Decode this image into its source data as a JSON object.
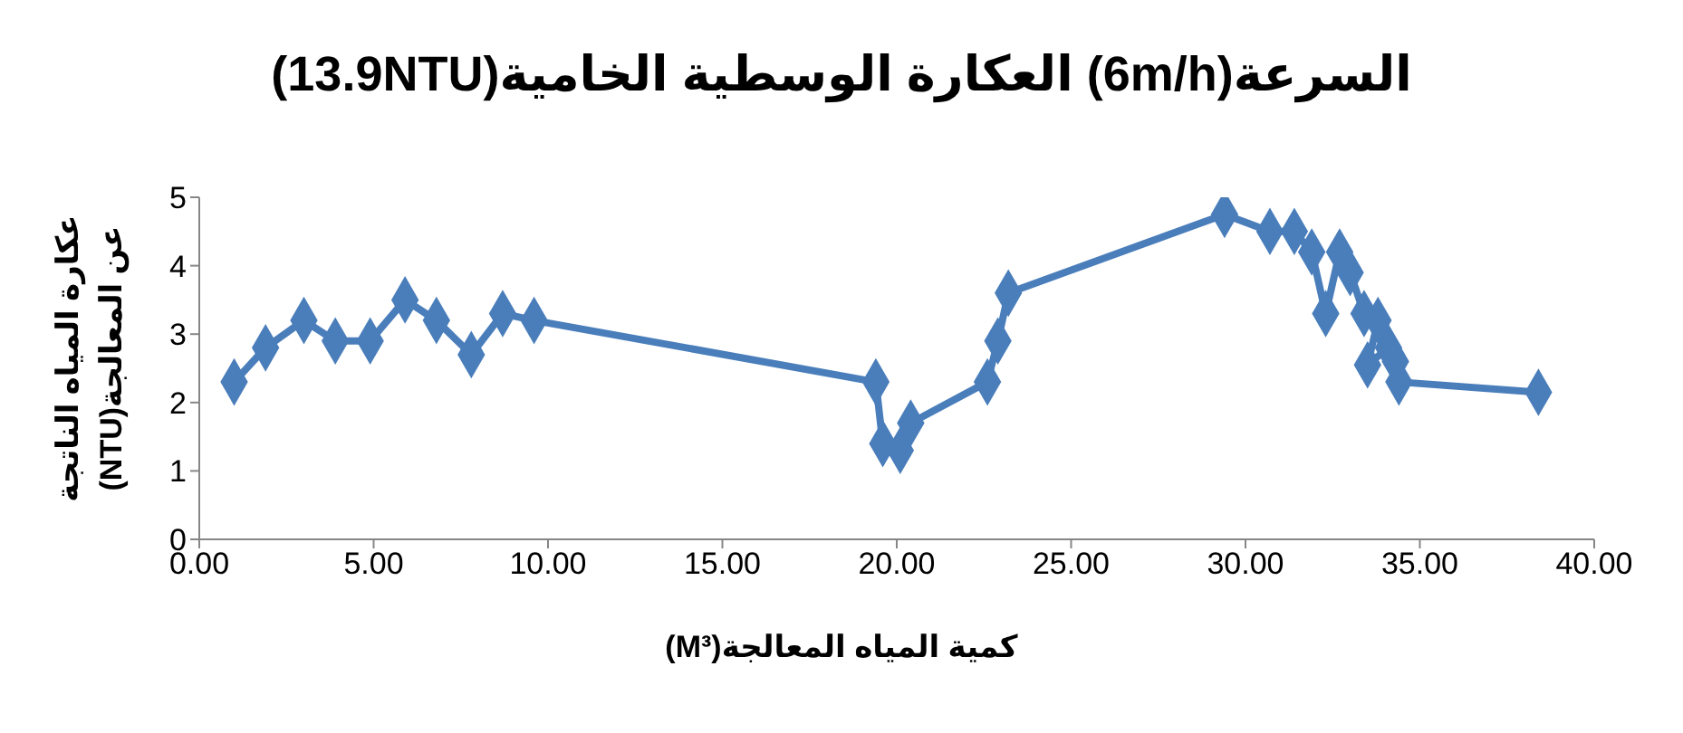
{
  "chart_data": {
    "type": "line",
    "title": "السرعة(6m/h) العكارة الوسطية الخامية(13.9NTU)",
    "xlabel": "كمية المياه المعالجة(M³)",
    "ylabel": "عكارة المياه الناتجة عن المعالجة(NTU)",
    "x": [
      1.0,
      1.9,
      3.0,
      3.9,
      4.9,
      5.9,
      6.8,
      7.8,
      8.7,
      9.6,
      19.4,
      19.6,
      20.1,
      20.4,
      22.6,
      22.9,
      23.2,
      29.4,
      30.7,
      31.4,
      31.9,
      32.3,
      32.7,
      33.0,
      33.4,
      33.8,
      33.5,
      34.1,
      34.3,
      34.4,
      38.4
    ],
    "series": [
      {
        "color": "#4a7ebb",
        "values": [
          2.3,
          2.8,
          3.2,
          2.9,
          2.9,
          3.5,
          3.2,
          2.7,
          3.3,
          3.2,
          2.3,
          1.4,
          1.3,
          1.7,
          2.3,
          2.9,
          3.6,
          4.75,
          4.5,
          4.5,
          4.2,
          3.3,
          4.2,
          3.9,
          3.3,
          3.2,
          2.55,
          2.8,
          2.6,
          2.3,
          2.15
        ]
      }
    ],
    "xlim": [
      0,
      40
    ],
    "xticks": [
      {
        "value": 0,
        "label": "0.00"
      },
      {
        "value": 5,
        "label": "5.00"
      },
      {
        "value": 10,
        "label": "10.00"
      },
      {
        "value": 15,
        "label": "15.00"
      },
      {
        "value": 20,
        "label": "20.00"
      },
      {
        "value": 25,
        "label": "25.00"
      },
      {
        "value": 30,
        "label": "30.00"
      },
      {
        "value": 35,
        "label": "35.00"
      },
      {
        "value": 40,
        "label": "40.00"
      }
    ],
    "ylim": [
      0,
      5
    ],
    "yticks": [
      0,
      1,
      2,
      3,
      4,
      5
    ],
    "marker": "diamond",
    "grid": false,
    "legend": false
  }
}
